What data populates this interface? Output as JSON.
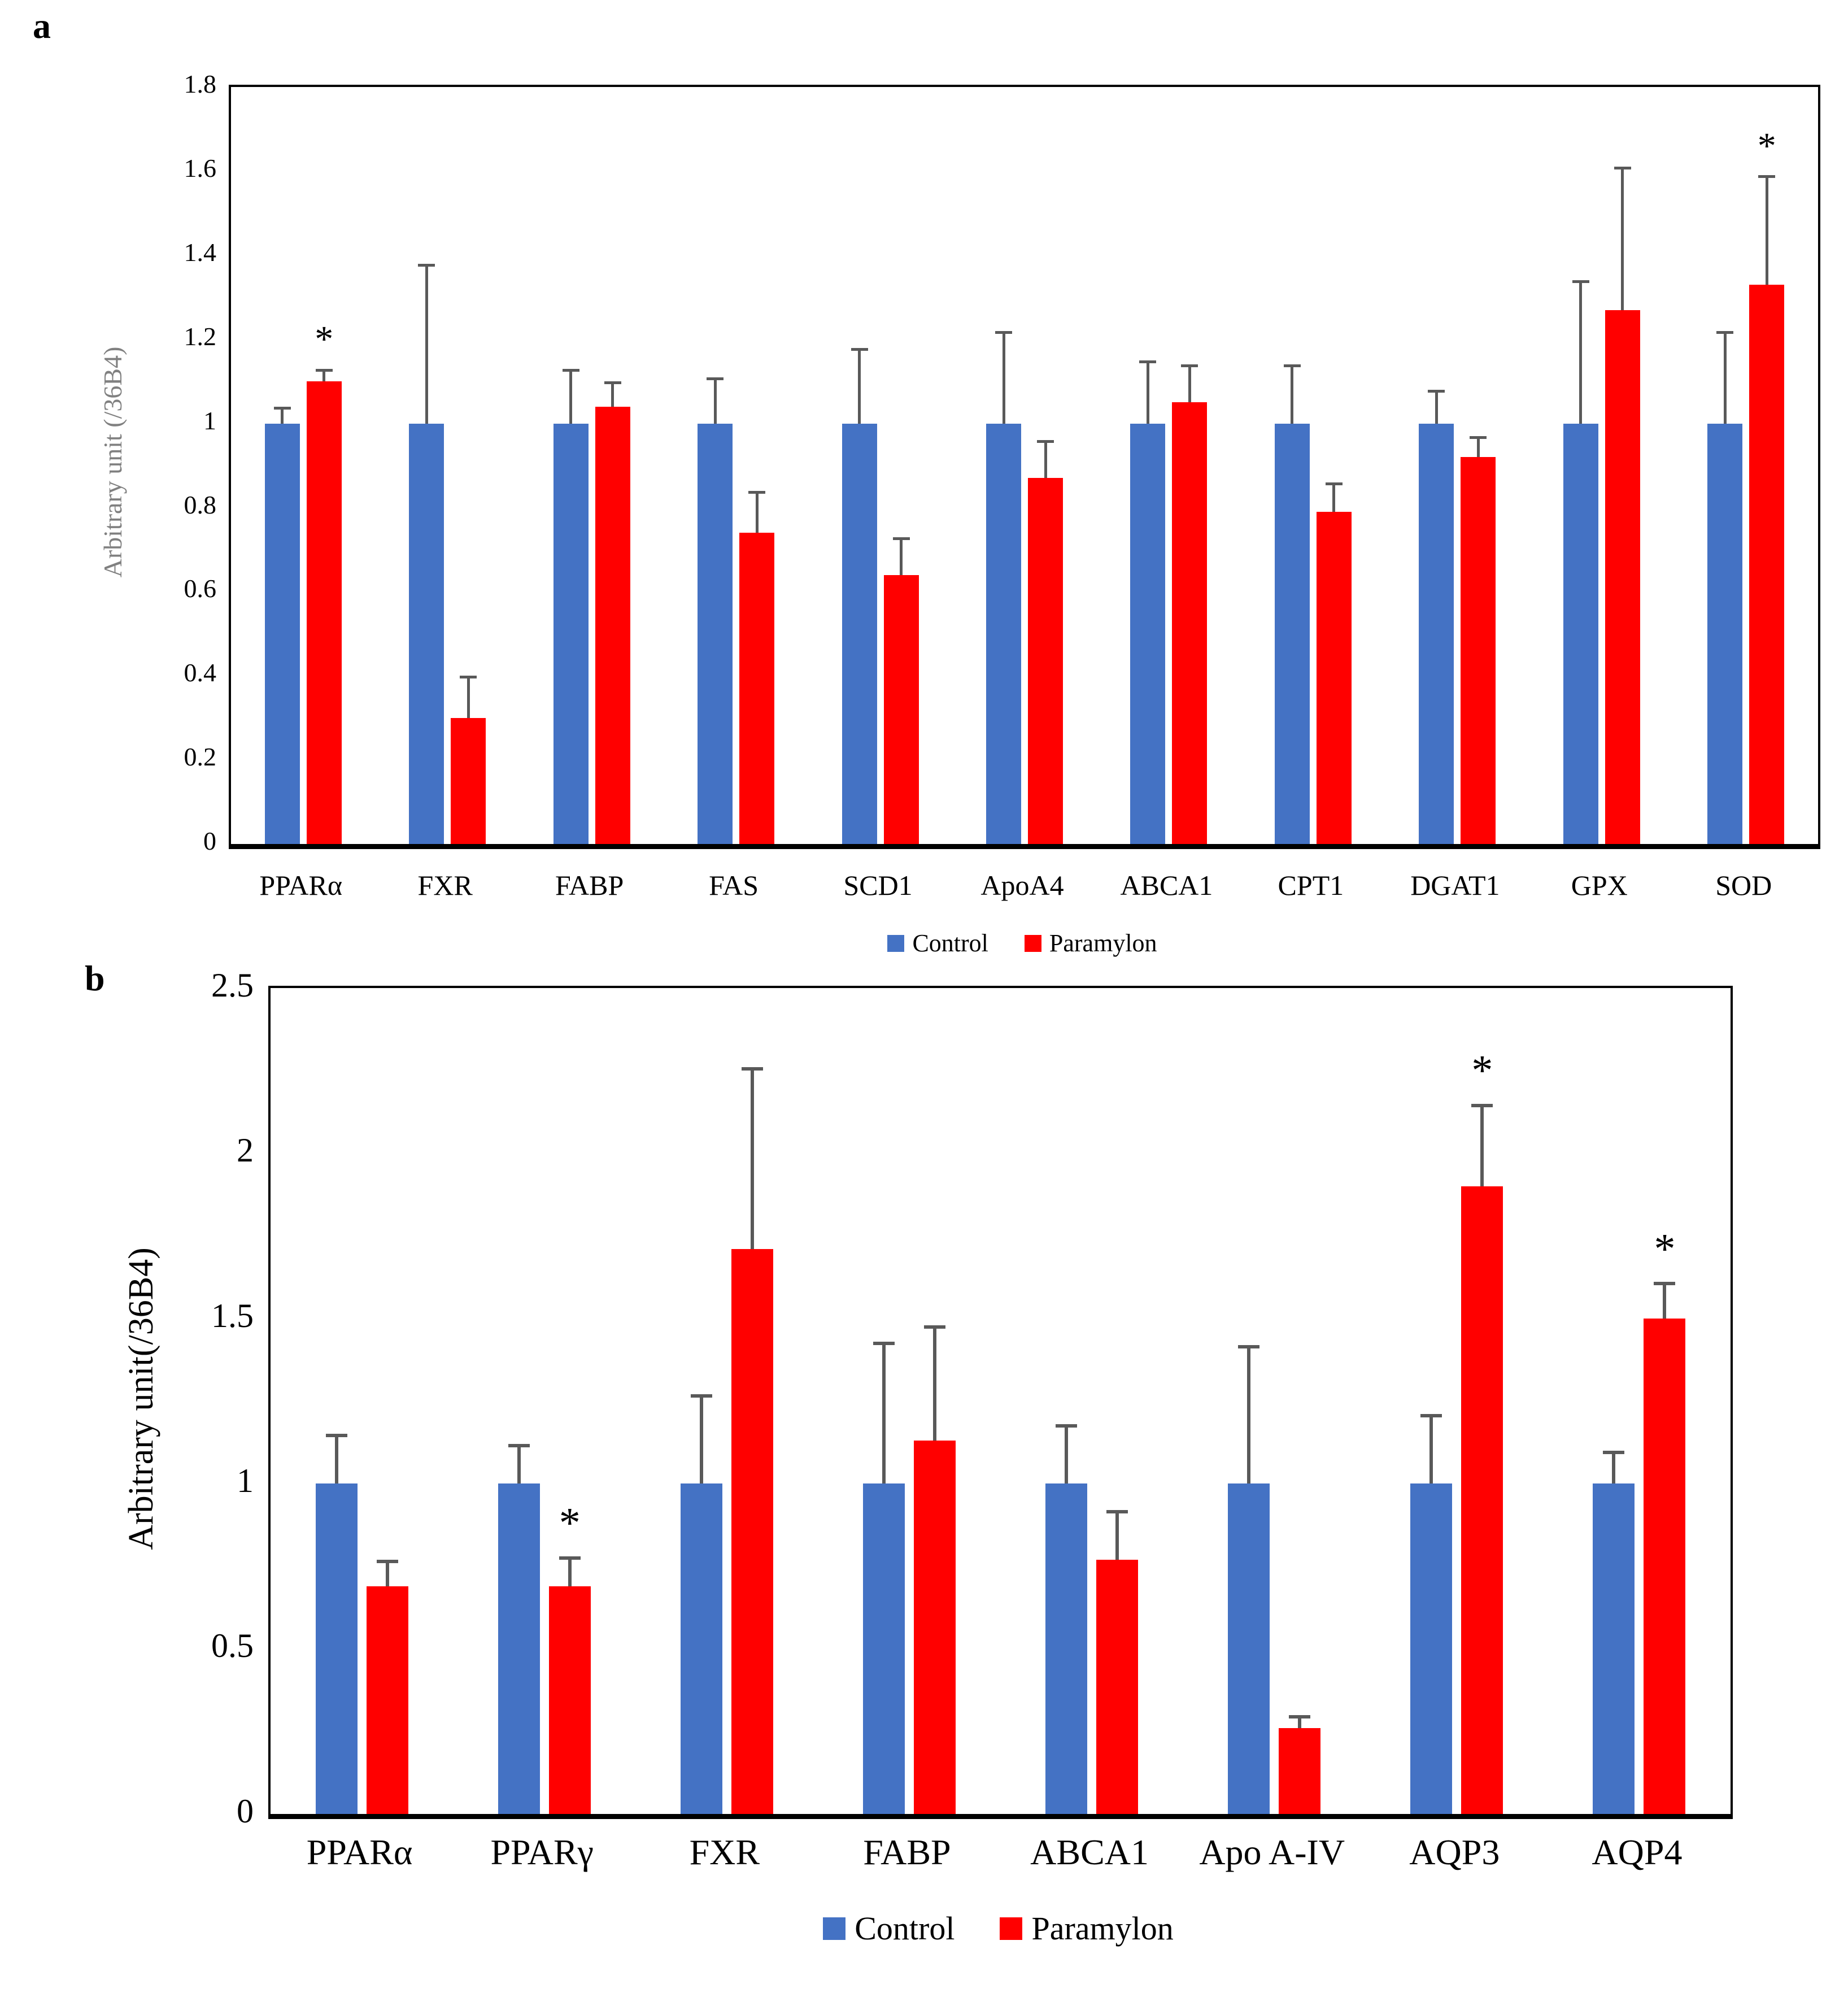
{
  "figure": {
    "background": "#ffffff",
    "error_bar_color": "#595959",
    "sig_marker": "*"
  },
  "chart_data": [
    {
      "type": "bar",
      "panel_label": "a",
      "title": "",
      "xlabel": "",
      "ylabel": "Arbitrary unit (/36B4)",
      "ylabel_color": "#808080",
      "ylim": [
        0,
        1.8
      ],
      "y_tick_labels": [
        "0",
        "0.2",
        "0.4",
        "0.6",
        "0.8",
        "1",
        "1.2",
        "1.4",
        "1.6",
        "1.8"
      ],
      "grid": false,
      "legend_position": "bottom",
      "categories": [
        "PPARα",
        "FXR",
        "FABP",
        "FAS",
        "SCD1",
        "ApoA4",
        "ABCA1",
        "CPT1",
        "DGAT1",
        "GPX",
        "SOD"
      ],
      "series": [
        {
          "name": "Control",
          "color": "#4472C4",
          "values": [
            1.0,
            1.0,
            1.0,
            1.0,
            1.0,
            1.0,
            1.0,
            1.0,
            1.0,
            1.0,
            1.0
          ],
          "errors": [
            0.04,
            0.38,
            0.13,
            0.11,
            0.18,
            0.22,
            0.15,
            0.14,
            0.08,
            0.34,
            0.22
          ],
          "asterisks": [
            false,
            false,
            false,
            false,
            false,
            false,
            false,
            false,
            false,
            false,
            false
          ]
        },
        {
          "name": "Paramylon",
          "color": "#FF0000",
          "values": [
            1.1,
            0.3,
            1.04,
            0.74,
            0.64,
            0.87,
            1.05,
            0.79,
            0.92,
            1.27,
            1.33
          ],
          "errors": [
            0.03,
            0.1,
            0.06,
            0.1,
            0.09,
            0.09,
            0.09,
            0.07,
            0.05,
            0.34,
            0.26
          ],
          "asterisks": [
            true,
            false,
            false,
            false,
            false,
            false,
            false,
            false,
            false,
            false,
            true
          ]
        }
      ],
      "legend": [
        "Control",
        "Paramylon"
      ]
    },
    {
      "type": "bar",
      "panel_label": "b",
      "title": "",
      "xlabel": "",
      "ylabel": "Arbitrary unit(/36B4)",
      "ylabel_color": "#000000",
      "ylim": [
        0,
        2.5
      ],
      "y_tick_labels": [
        "0",
        "0.5",
        "1",
        "1.5",
        "2",
        "2.5"
      ],
      "grid": false,
      "legend_position": "bottom",
      "categories": [
        "PPARα",
        "PPARγ",
        "FXR",
        "FABP",
        "ABCA1",
        "Apo A-IV",
        "AQP3",
        "AQP4"
      ],
      "series": [
        {
          "name": "Control",
          "color": "#4472C4",
          "values": [
            1.0,
            1.0,
            1.0,
            1.0,
            1.0,
            1.0,
            1.0,
            1.0
          ],
          "errors": [
            0.15,
            0.12,
            0.27,
            0.43,
            0.18,
            0.42,
            0.21,
            0.1
          ],
          "asterisks": [
            false,
            false,
            false,
            false,
            false,
            false,
            false,
            false
          ]
        },
        {
          "name": "Paramylon",
          "color": "#FF0000",
          "values": [
            0.69,
            0.69,
            1.71,
            1.13,
            0.77,
            0.26,
            1.9,
            1.5
          ],
          "errors": [
            0.08,
            0.09,
            0.55,
            0.35,
            0.15,
            0.04,
            0.25,
            0.11
          ],
          "asterisks": [
            false,
            true,
            false,
            false,
            false,
            false,
            true,
            true
          ]
        }
      ],
      "legend": [
        "Control",
        "Paramylon"
      ]
    }
  ]
}
